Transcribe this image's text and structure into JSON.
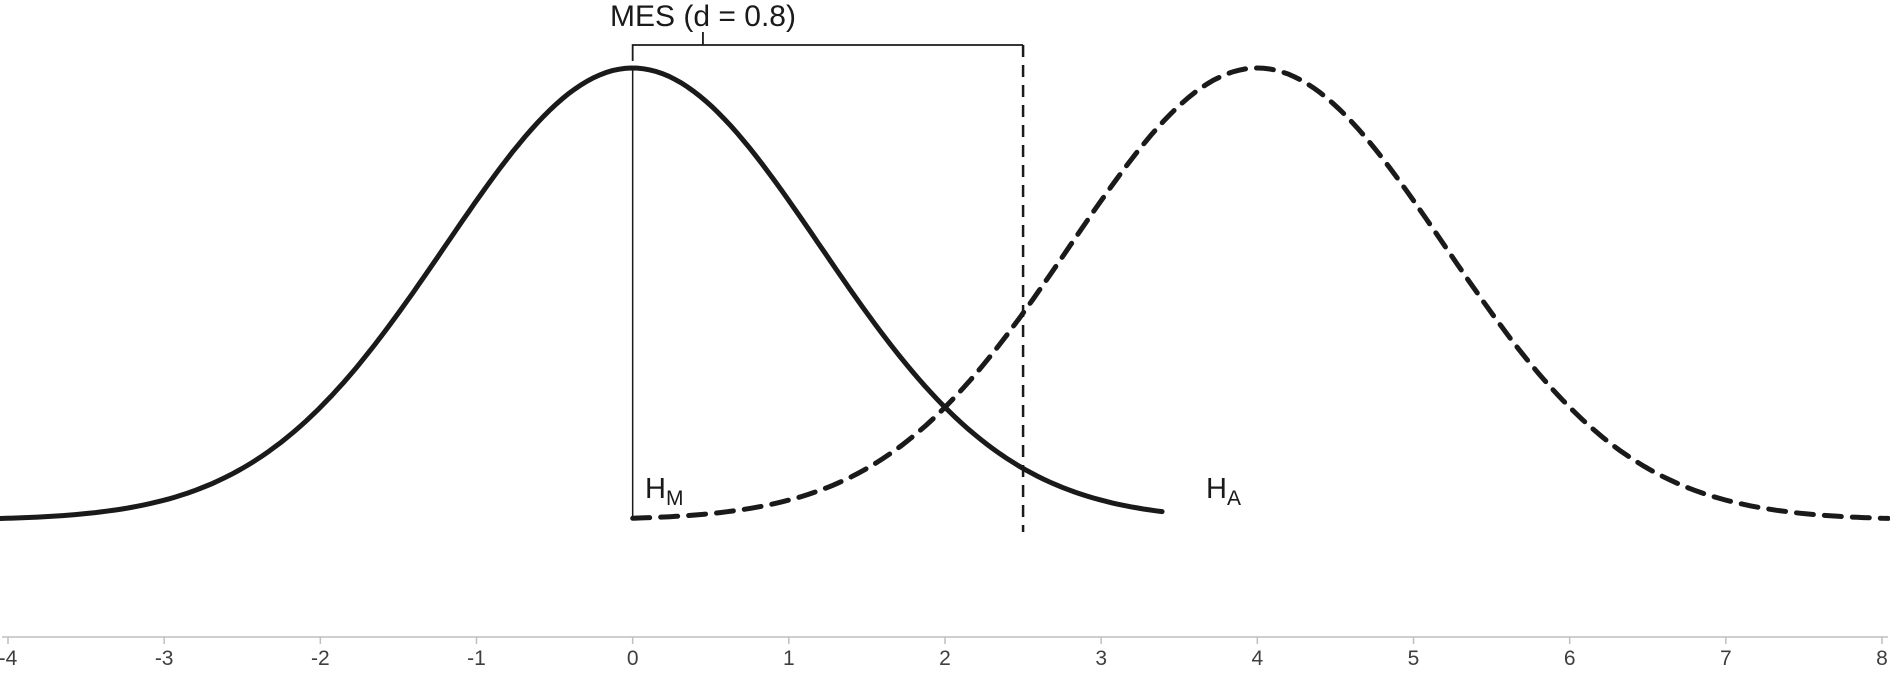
{
  "chart_data": {
    "type": "line",
    "title": "",
    "xlabel": "",
    "ylabel": "",
    "xlim": [
      -4,
      8
    ],
    "ylim_normalized": [
      0,
      1
    ],
    "grid": false,
    "legend": false,
    "x_tick_values": [
      -4,
      -3,
      -2,
      -1,
      0,
      1,
      2,
      3,
      4,
      5,
      6,
      7,
      8
    ],
    "x_tick_labels": [
      "-4",
      "-3",
      "-2",
      "-1",
      "0",
      "1",
      "2",
      "3",
      "4",
      "5",
      "6",
      "7",
      "8"
    ],
    "series": [
      {
        "name": "H_M distribution",
        "shape": "normal",
        "mean": 0,
        "sd": 1.2,
        "peak": 1,
        "line_style": "solid",
        "x_start": -4.05,
        "x_end": 3.4
      },
      {
        "name": "H_A distribution",
        "shape": "normal",
        "mean": 4,
        "sd": 1.2,
        "peak": 1,
        "line_style": "dashed",
        "x_start": 0,
        "x_end": 8.05
      }
    ],
    "markers": {
      "mean_line_x": 0,
      "mes_line_x": 2.5,
      "bracket_from_x": 0,
      "bracket_to_x": 2.5,
      "bracket_label_x": 0.45
    },
    "annotation": {
      "text": "MES (d = 0.8)"
    },
    "labels": {
      "hm": {
        "main": "H",
        "sub": "M"
      },
      "ha": {
        "main": "H",
        "sub": "A"
      }
    },
    "colors": {
      "curve": "#1a1a1a",
      "axis": "#bfbfbf",
      "tick_text": "#3f3f3f"
    }
  }
}
